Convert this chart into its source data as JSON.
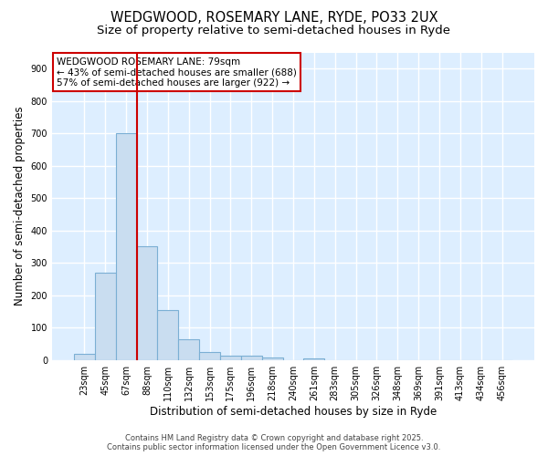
{
  "title_line1": "WEDGWOOD, ROSEMARY LANE, RYDE, PO33 2UX",
  "title_line2": "Size of property relative to semi-detached houses in Ryde",
  "xlabel": "Distribution of semi-detached houses by size in Ryde",
  "ylabel": "Number of semi-detached properties",
  "categories": [
    "23sqm",
    "45sqm",
    "67sqm",
    "88sqm",
    "110sqm",
    "132sqm",
    "153sqm",
    "175sqm",
    "196sqm",
    "218sqm",
    "240sqm",
    "261sqm",
    "283sqm",
    "305sqm",
    "326sqm",
    "348sqm",
    "369sqm",
    "391sqm",
    "413sqm",
    "434sqm",
    "456sqm"
  ],
  "values": [
    20,
    270,
    700,
    350,
    155,
    65,
    25,
    13,
    13,
    8,
    0,
    5,
    0,
    0,
    0,
    0,
    0,
    0,
    0,
    0,
    0
  ],
  "bar_color": "#c9ddf0",
  "bar_edge_color": "#7bafd4",
  "fig_bg_color": "#ffffff",
  "ax_bg_color": "#ddeeff",
  "grid_color": "#ffffff",
  "vline_color": "#cc0000",
  "annotation_text": "WEDGWOOD ROSEMARY LANE: 79sqm\n← 43% of semi-detached houses are smaller (688)\n57% of semi-detached houses are larger (922) →",
  "annotation_box_facecolor": "#ffffff",
  "annotation_box_edgecolor": "#cc0000",
  "ylim": [
    0,
    950
  ],
  "yticks": [
    0,
    100,
    200,
    300,
    400,
    500,
    600,
    700,
    800,
    900
  ],
  "footer_text": "Contains HM Land Registry data © Crown copyright and database right 2025.\nContains public sector information licensed under the Open Government Licence v3.0.",
  "title_fontsize": 10.5,
  "subtitle_fontsize": 9.5,
  "axis_label_fontsize": 8.5,
  "tick_fontsize": 7,
  "annotation_fontsize": 7.5,
  "footer_fontsize": 6
}
